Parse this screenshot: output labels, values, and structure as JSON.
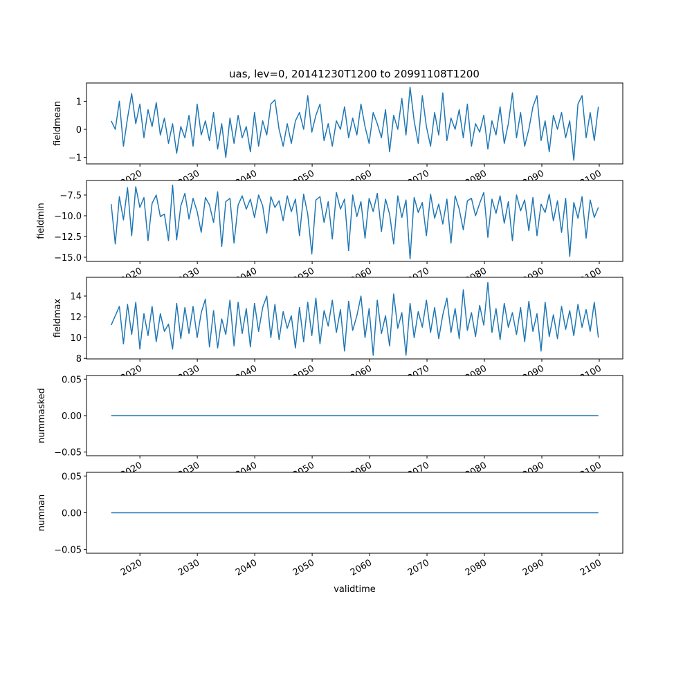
{
  "chart_data": [
    {
      "type": "line",
      "title": "uas, lev=0, 20141230T1200 to 20991108T1200",
      "ylabel": "fieldmean",
      "xlabel": "",
      "x_start": 2015.0,
      "x_end": 2099.85,
      "xlim": [
        2010.7,
        2104.1
      ],
      "ylim": [
        -1.23,
        1.65
      ],
      "yticks": [
        -1,
        0,
        1
      ],
      "ytick_labels": [
        "−1",
        "0",
        "1"
      ],
      "values": [
        0.3,
        0.0,
        1.0,
        -0.6,
        0.4,
        1.27,
        0.2,
        0.9,
        -0.3,
        0.7,
        0.1,
        0.95,
        -0.2,
        0.4,
        -0.5,
        0.2,
        -0.85,
        0.1,
        -0.3,
        0.5,
        -0.6,
        0.9,
        -0.2,
        0.3,
        -0.4,
        0.6,
        -0.7,
        0.2,
        -1.0,
        0.4,
        -0.5,
        0.5,
        -0.3,
        0.1,
        -0.8,
        0.6,
        -0.6,
        0.3,
        -0.2,
        0.9,
        1.05,
        0.0,
        -0.6,
        0.2,
        -0.5,
        0.3,
        0.6,
        0.0,
        1.2,
        -0.1,
        0.5,
        0.9,
        -0.4,
        0.2,
        -0.6,
        0.3,
        0.0,
        0.8,
        -0.3,
        0.4,
        -0.2,
        0.9,
        0.1,
        -0.5,
        0.6,
        0.2,
        -0.3,
        0.7,
        -0.8,
        0.5,
        0.0,
        1.1,
        -0.2,
        1.5,
        0.3,
        -0.5,
        1.2,
        0.1,
        -0.6,
        0.6,
        -0.2,
        1.3,
        -0.4,
        0.4,
        0.0,
        0.7,
        -0.3,
        0.9,
        -0.6,
        0.2,
        -0.1,
        0.5,
        -0.7,
        0.3,
        -0.2,
        0.8,
        -0.5,
        0.2,
        1.3,
        -0.3,
        0.6,
        -0.6,
        0.0,
        0.8,
        1.2,
        -0.4,
        0.3,
        -0.8,
        0.5,
        0.0,
        0.6,
        -0.3,
        0.3,
        -1.1,
        0.9,
        1.2,
        -0.3,
        0.6,
        -0.4,
        0.8
      ]
    },
    {
      "type": "line",
      "ylabel": "fieldmin",
      "x_start": 2015.0,
      "x_end": 2099.85,
      "xlim": [
        2010.7,
        2104.1
      ],
      "ylim": [
        -15.5,
        -5.75
      ],
      "yticks": [
        -15,
        -12.5,
        -10,
        -7.5
      ],
      "ytick_labels": [
        "−15.0",
        "−12.5",
        "−10.0",
        "−7.5"
      ],
      "values": [
        -8.6,
        -13.4,
        -7.7,
        -10.5,
        -6.6,
        -12.4,
        -6.5,
        -9.0,
        -7.8,
        -13.0,
        -8.5,
        -7.5,
        -10.1,
        -9.8,
        -13.0,
        -6.3,
        -12.9,
        -8.8,
        -7.3,
        -10.4,
        -7.9,
        -9.5,
        -12.0,
        -7.8,
        -8.7,
        -10.8,
        -7.1,
        -13.7,
        -8.3,
        -7.9,
        -13.3,
        -8.7,
        -7.6,
        -9.2,
        -8.0,
        -10.2,
        -7.5,
        -8.8,
        -12.1,
        -7.7,
        -9.0,
        -8.2,
        -10.6,
        -7.6,
        -9.5,
        -8.0,
        -12.4,
        -7.4,
        -9.8,
        -14.6,
        -8.1,
        -7.7,
        -10.8,
        -8.3,
        -12.8,
        -7.2,
        -9.2,
        -8.0,
        -14.2,
        -7.5,
        -10.1,
        -8.3,
        -12.7,
        -7.9,
        -9.5,
        -7.3,
        -11.9,
        -8.0,
        -9.8,
        -13.4,
        -7.6,
        -10.2,
        -8.1,
        -15.2,
        -7.8,
        -9.6,
        -8.4,
        -12.4,
        -7.4,
        -10.3,
        -8.6,
        -11.0,
        -8.0,
        -13.3,
        -7.6,
        -9.2,
        -11.7,
        -8.2,
        -7.9,
        -10.0,
        -8.5,
        -7.2,
        -12.6,
        -8.0,
        -9.7,
        -7.6,
        -10.9,
        -8.3,
        -13.0,
        -7.5,
        -9.4,
        -8.1,
        -11.8,
        -7.8,
        -12.4,
        -8.6,
        -9.6,
        -7.4,
        -10.6,
        -8.2,
        -12.0,
        -7.9,
        -14.9,
        -8.4,
        -10.3,
        -7.7,
        -12.7,
        -8.1,
        -10.2,
        -9.0
      ]
    },
    {
      "type": "line",
      "ylabel": "fieldmax",
      "x_start": 2015.0,
      "x_end": 2099.85,
      "xlim": [
        2010.7,
        2104.1
      ],
      "ylim": [
        7.95,
        15.8
      ],
      "yticks": [
        8,
        10,
        12,
        14
      ],
      "ytick_labels": [
        "8",
        "10",
        "12",
        "14"
      ],
      "values": [
        11.2,
        12.1,
        13.0,
        9.4,
        13.2,
        10.3,
        13.4,
        8.9,
        12.3,
        10.2,
        13.0,
        9.6,
        12.3,
        10.6,
        11.3,
        8.9,
        13.3,
        9.9,
        12.9,
        10.4,
        13.0,
        10.0,
        12.4,
        13.7,
        9.1,
        12.6,
        9.0,
        11.8,
        10.3,
        13.6,
        9.2,
        13.4,
        10.4,
        12.8,
        9.1,
        13.3,
        10.6,
        12.9,
        14.0,
        10.0,
        13.2,
        9.8,
        12.5,
        10.9,
        12.1,
        9.0,
        12.9,
        9.6,
        13.4,
        10.2,
        13.8,
        9.4,
        12.6,
        11.1,
        13.6,
        10.5,
        12.7,
        8.7,
        13.5,
        10.7,
        12.1,
        14.0,
        10.0,
        12.8,
        8.3,
        13.6,
        10.4,
        12.1,
        9.2,
        14.2,
        10.9,
        12.4,
        8.3,
        13.3,
        10.0,
        12.5,
        11.0,
        13.6,
        10.5,
        12.9,
        9.9,
        12.2,
        13.8,
        10.5,
        12.8,
        9.9,
        14.6,
        10.7,
        12.4,
        10.1,
        13.1,
        11.2,
        15.3,
        10.5,
        12.8,
        9.8,
        13.3,
        11.0,
        12.4,
        10.3,
        12.9,
        9.6,
        13.5,
        10.6,
        12.3,
        8.7,
        13.4,
        10.1,
        12.2,
        9.9,
        13.0,
        10.8,
        12.6,
        10.2,
        13.2,
        11.0,
        12.7,
        10.6,
        13.4,
        10.0
      ]
    },
    {
      "type": "line",
      "ylabel": "nummasked",
      "x_start": 2015.0,
      "x_end": 2099.85,
      "xlim": [
        2010.7,
        2104.1
      ],
      "ylim": [
        -0.055,
        0.055
      ],
      "yticks": [
        -0.05,
        0,
        0.05
      ],
      "ytick_labels": [
        "−0.05",
        "0.00",
        "0.05"
      ],
      "values": [
        0,
        0
      ]
    },
    {
      "type": "line",
      "ylabel": "numnan",
      "xlabel": "validtime",
      "x_start": 2015.0,
      "x_end": 2099.85,
      "xlim": [
        2010.7,
        2104.1
      ],
      "ylim": [
        -0.055,
        0.055
      ],
      "yticks": [
        -0.05,
        0,
        0.05
      ],
      "ytick_labels": [
        "−0.05",
        "0.00",
        "0.05"
      ],
      "values": [
        0,
        0
      ]
    }
  ],
  "xticks": [
    2020,
    2030,
    2040,
    2050,
    2060,
    2070,
    2080,
    2090,
    2100
  ],
  "xtick_labels": [
    "2020",
    "2030",
    "2040",
    "2050",
    "2060",
    "2070",
    "2080",
    "2090",
    "2100"
  ],
  "line_color": "#1f77b4"
}
